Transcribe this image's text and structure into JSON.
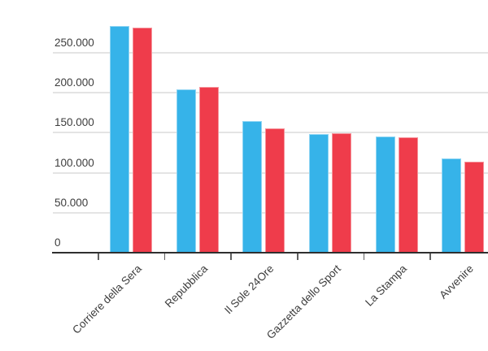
{
  "chart": {
    "title": "",
    "background_color": "#ffffff",
    "text_color": "#3d3d3d",
    "grid_color": "#e4e4e4",
    "axis_color": "#2f2f2f",
    "tick_color": "#606060"
  },
  "chart_data": {
    "type": "bar",
    "title": "",
    "subtitle": "",
    "xlabel": "",
    "ylabel": "",
    "legend": "none",
    "grid": true,
    "x_label_rotation": -45,
    "categories": [
      "Corriere della Sera",
      "Repubblica",
      "Il Sole 24Ore",
      "Gazzetta dello Sport",
      "La Stampa",
      "Avvenire"
    ],
    "series": [
      {
        "name": "blue",
        "color": "#36b3e9",
        "values": [
          284000,
          204000,
          165000,
          148000,
          145000,
          118000
        ]
      },
      {
        "name": "red",
        "color": "#ef3c4b",
        "values": [
          282000,
          207000,
          155000,
          149000,
          144000,
          114000
        ]
      }
    ],
    "ylim": [
      0,
      250000
    ],
    "y_ticks": [
      {
        "value": 0,
        "label": "0"
      },
      {
        "value": 50000,
        "label": "50.000"
      },
      {
        "value": 100000,
        "label": "100.000"
      },
      {
        "value": 150000,
        "label": "150.000"
      },
      {
        "value": 200000,
        "label": "200.000"
      },
      {
        "value": 250000,
        "label": "250.000"
      }
    ]
  }
}
